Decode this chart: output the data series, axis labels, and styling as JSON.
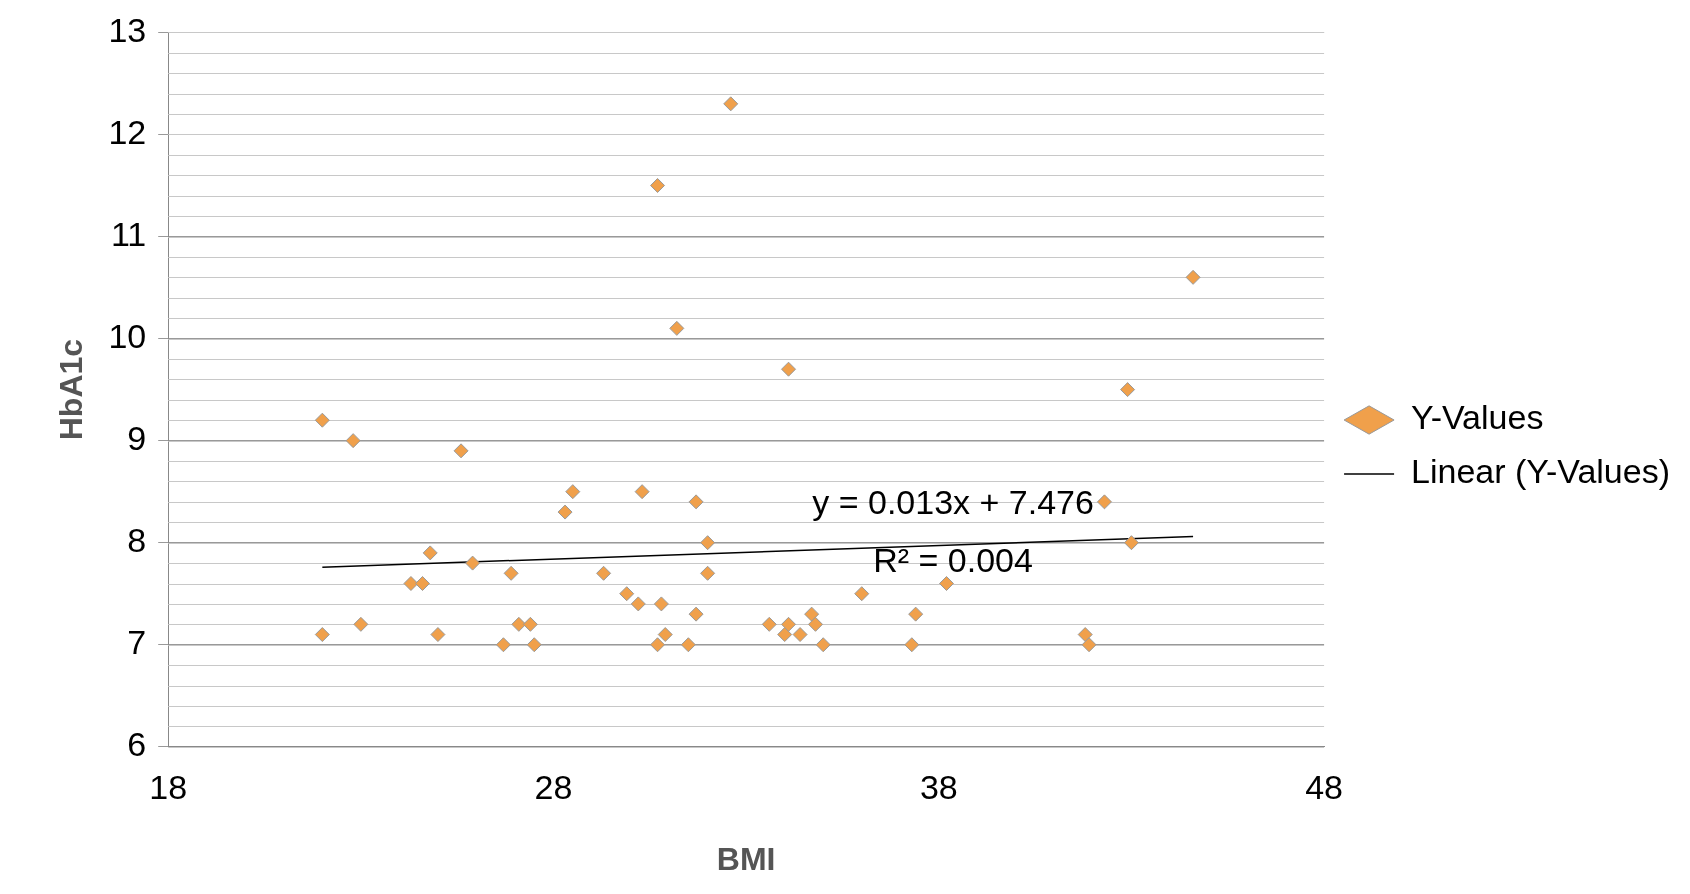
{
  "chart_data": {
    "type": "scatter",
    "xlabel": "BMI",
    "ylabel": "HbA1c",
    "xlim": [
      18,
      48
    ],
    "xticks": [
      18,
      28,
      38,
      48
    ],
    "ylim": [
      6,
      13
    ],
    "yticks": [
      6,
      7,
      8,
      9,
      10,
      11,
      12,
      13
    ],
    "grid": "y",
    "legend": "right",
    "series": [
      {
        "name": "Y-Values",
        "type": "scatter",
        "marker": "diamond",
        "color": "#f0a04b",
        "x": [
          22.0,
          22.8,
          22.0,
          23.0,
          24.3,
          24.6,
          24.8,
          25.0,
          25.6,
          25.9,
          26.7,
          26.9,
          27.1,
          27.4,
          27.5,
          28.3,
          28.5,
          29.3,
          29.9,
          30.2,
          30.3,
          30.7,
          30.7,
          30.8,
          30.9,
          31.2,
          31.5,
          31.7,
          31.7,
          32.0,
          32.0,
          32.6,
          33.6,
          34.0,
          34.1,
          34.1,
          34.4,
          34.7,
          34.8,
          35.0,
          36.0,
          37.3,
          37.4,
          38.2,
          41.8,
          41.9,
          42.3,
          42.9,
          43.0,
          44.6
        ],
        "values": [
          9.2,
          9.0,
          7.1,
          7.2,
          7.6,
          7.6,
          7.9,
          7.1,
          8.9,
          7.8,
          7.0,
          7.7,
          7.2,
          7.2,
          7.0,
          8.3,
          8.5,
          7.7,
          7.5,
          7.4,
          8.5,
          11.5,
          7.0,
          7.4,
          7.1,
          10.1,
          7.0,
          7.3,
          8.4,
          8.0,
          7.7,
          12.3,
          7.2,
          7.1,
          7.2,
          9.7,
          7.1,
          7.3,
          7.2,
          7.0,
          7.5,
          7.0,
          7.3,
          7.6,
          7.1,
          7.0,
          8.4,
          9.5,
          8.0,
          10.6
        ]
      },
      {
        "name": "Linear (Y-Values)",
        "type": "line",
        "marker": "none",
        "color": "#000000",
        "x": [
          22.0,
          44.6
        ],
        "values": [
          7.76,
          8.06
        ]
      }
    ],
    "annotations": [
      "y = 0.013x + 7.476",
      "R² = 0.004"
    ]
  }
}
